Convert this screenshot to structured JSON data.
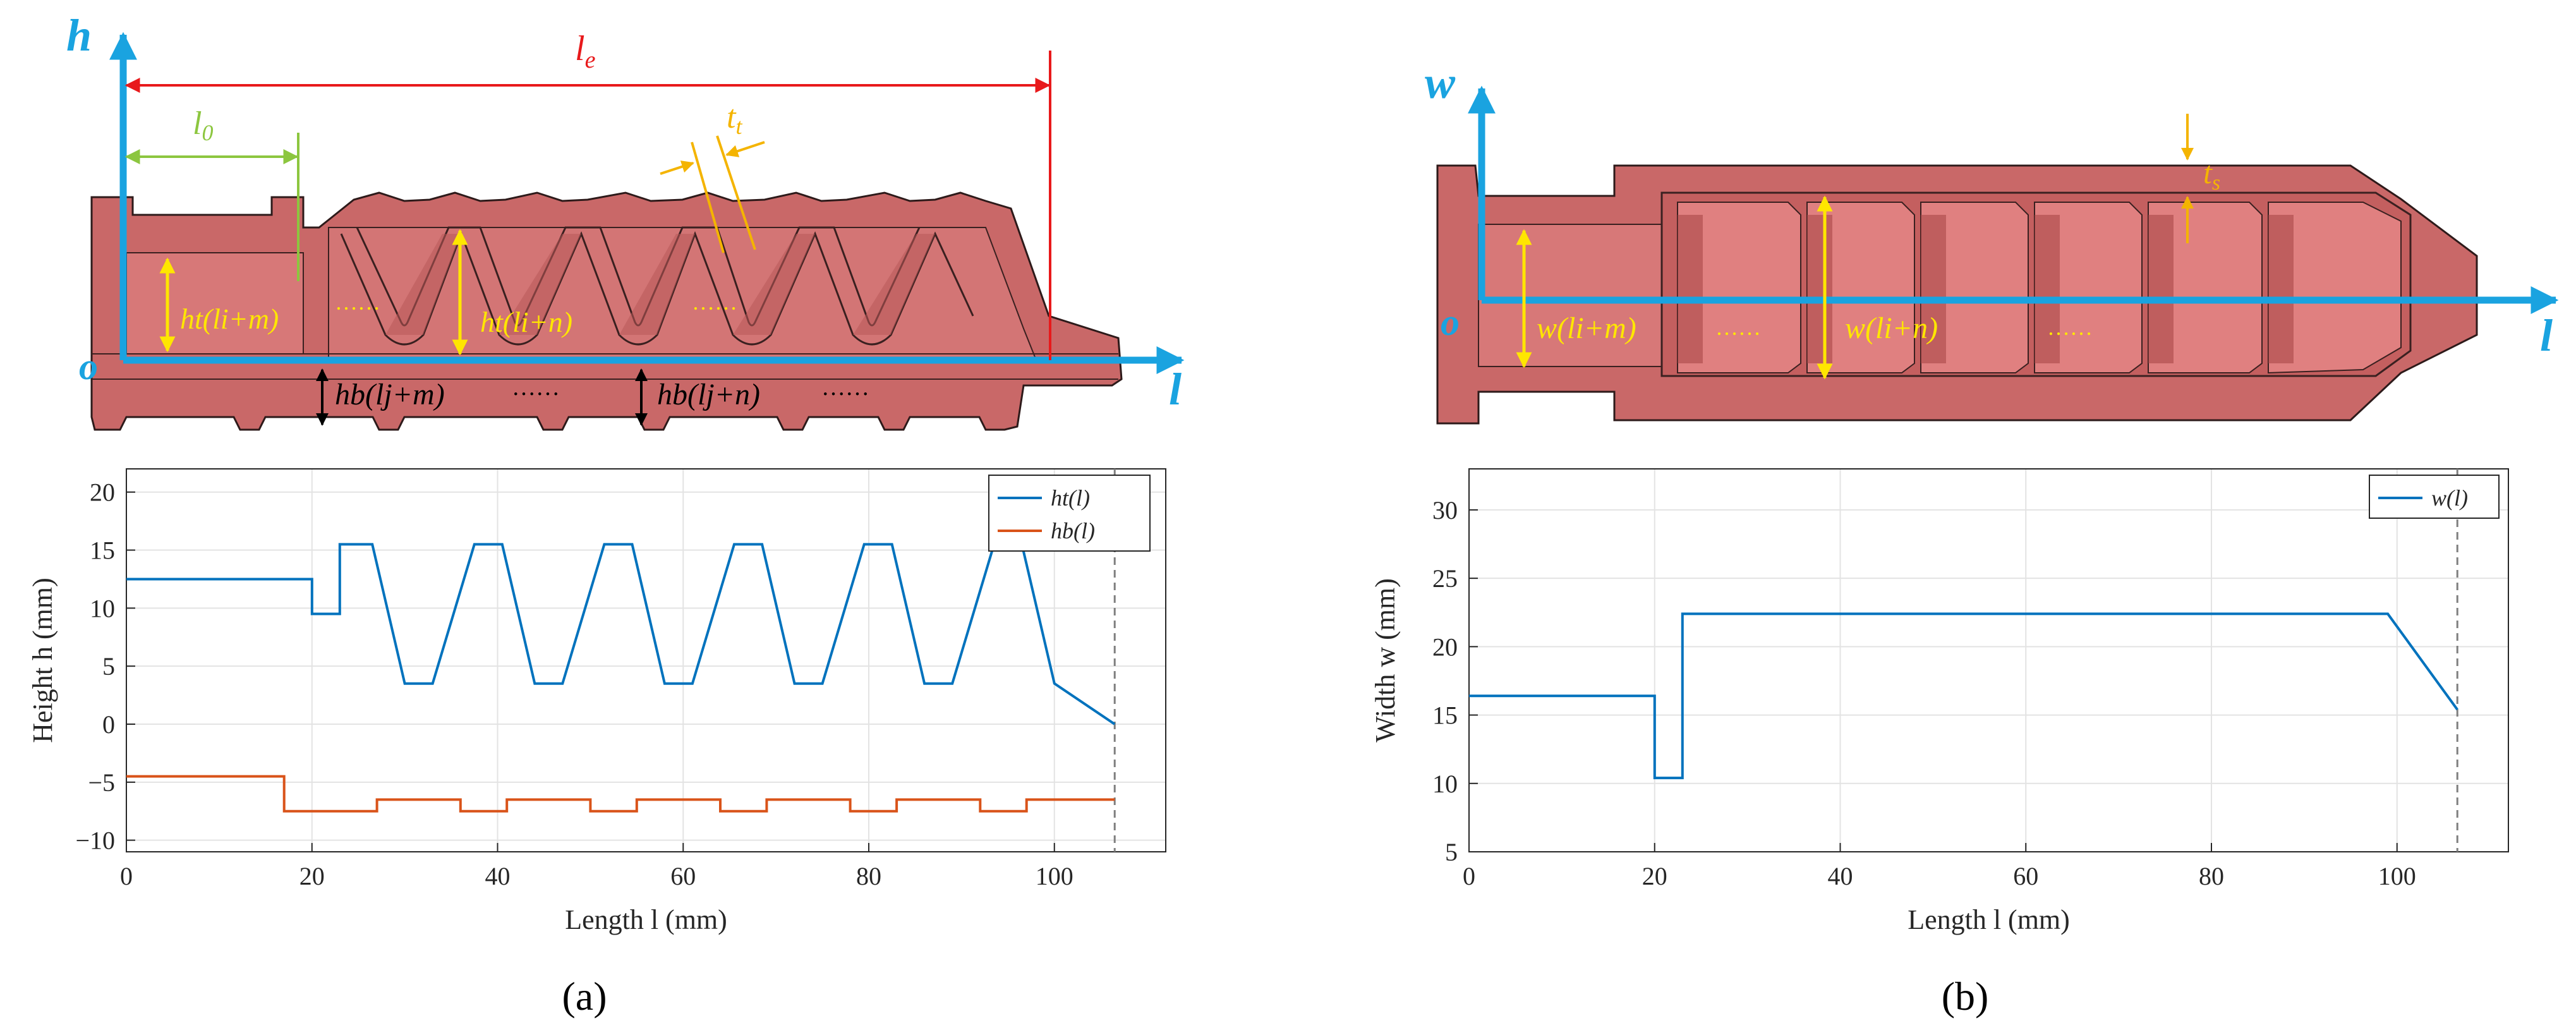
{
  "panels": [
    {
      "label": "(a)",
      "model_labels": {
        "v_axis": "h",
        "h_axis": "l",
        "origin": "o",
        "le": "l",
        "le_sub": "e",
        "l0": "l",
        "l0_sub": "0",
        "tt": "t",
        "tt_sub": "t",
        "top_left": "ht(li+m)",
        "top_right": "ht(li+n)",
        "bot_left": "hb(lj+m)",
        "bot_right": "hb(lj+n)",
        "dots": "……"
      }
    },
    {
      "label": "(b)",
      "model_labels": {
        "v_axis": "w",
        "h_axis": "l",
        "origin": "o",
        "ts": "t",
        "ts_sub": "s",
        "left": "w(li+m)",
        "right": "w(li+n)",
        "dots": "……"
      }
    }
  ],
  "chart_data": [
    {
      "type": "line",
      "xlabel": "Length l (mm)",
      "ylabel": "Height h (mm)",
      "xlim": [
        0,
        112
      ],
      "ylim": [
        -11,
        22
      ],
      "xticks": [
        0,
        20,
        40,
        60,
        80,
        100
      ],
      "yticks": [
        -10,
        -5,
        0,
        5,
        10,
        15,
        20
      ],
      "grid": true,
      "legend": "top-right",
      "vline": 106.5,
      "series": [
        {
          "name": "ht(l)",
          "color": "#0072BD",
          "x": [
            0,
            20,
            20,
            23,
            23,
            26.5,
            30,
            33,
            37.5,
            40.5,
            44,
            47,
            51.5,
            54.5,
            58,
            61,
            65.5,
            68.5,
            72,
            75,
            79.5,
            82.5,
            86,
            89,
            93.5,
            96.5,
            100,
            106.5
          ],
          "y": [
            12.5,
            12.5,
            9.5,
            9.5,
            15.5,
            15.5,
            3.5,
            3.5,
            15.5,
            15.5,
            3.5,
            3.5,
            15.5,
            15.5,
            3.5,
            3.5,
            15.5,
            15.5,
            3.5,
            3.5,
            15.5,
            15.5,
            3.5,
            3.5,
            15.5,
            15.5,
            3.5,
            0
          ]
        },
        {
          "name": "hb(l)",
          "color": "#D95319",
          "x": [
            0,
            17,
            17,
            27,
            27,
            36,
            36,
            41,
            41,
            50,
            50,
            55,
            55,
            64,
            64,
            69,
            69,
            78,
            78,
            83,
            83,
            92,
            92,
            97,
            97,
            106.5
          ],
          "y": [
            -4.5,
            -4.5,
            -7.5,
            -7.5,
            -6.5,
            -6.5,
            -7.5,
            -7.5,
            -6.5,
            -6.5,
            -7.5,
            -7.5,
            -6.5,
            -6.5,
            -7.5,
            -7.5,
            -6.5,
            -6.5,
            -7.5,
            -7.5,
            -6.5,
            -6.5,
            -7.5,
            -7.5,
            -6.5,
            -6.5
          ]
        }
      ]
    },
    {
      "type": "line",
      "xlabel": "Length l (mm)",
      "ylabel": "Width w (mm)",
      "xlim": [
        0,
        112
      ],
      "ylim": [
        5,
        33
      ],
      "xticks": [
        0,
        20,
        40,
        60,
        80,
        100
      ],
      "yticks": [
        5,
        10,
        15,
        20,
        25,
        30
      ],
      "grid": true,
      "legend": "top-right",
      "vline": 106.5,
      "series": [
        {
          "name": "w(l)",
          "color": "#0072BD",
          "x": [
            0,
            20,
            20,
            23,
            23,
            99,
            106.5
          ],
          "y": [
            16.4,
            16.4,
            10.4,
            10.4,
            22.4,
            22.4,
            15.4
          ]
        }
      ]
    }
  ]
}
